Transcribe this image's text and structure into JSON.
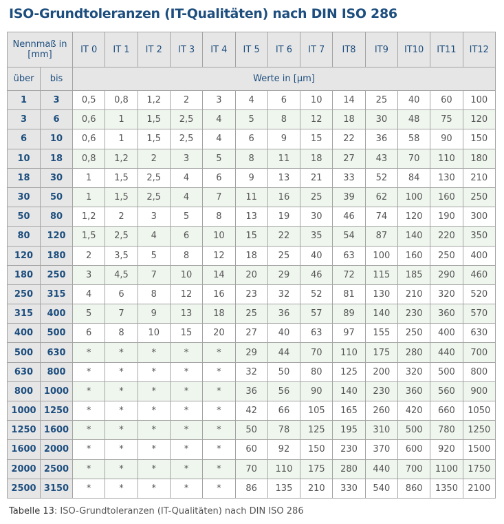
{
  "title": "ISO-Grundtoleranzen (IT-Qualitäten) nach DIN ISO 286",
  "header": {
    "nennmass": "Nennmaß in [mm]",
    "ueber": "über",
    "bis": "bis",
    "werte": "Werte in [µm]",
    "grades": [
      "IT 0",
      "IT 1",
      "IT 2",
      "IT 3",
      "IT 4",
      "IT 5",
      "IT 6",
      "IT 7",
      "IT8",
      "IT9",
      "IT10",
      "IT11",
      "IT12"
    ]
  },
  "rows": [
    {
      "ueber": "1",
      "bis": "3",
      "values": [
        "0,5",
        "0,8",
        "1,2",
        "2",
        "3",
        "4",
        "6",
        "10",
        "14",
        "25",
        "40",
        "60",
        "100"
      ]
    },
    {
      "ueber": "3",
      "bis": "6",
      "values": [
        "0,6",
        "1",
        "1,5",
        "2,5",
        "4",
        "5",
        "8",
        "12",
        "18",
        "30",
        "48",
        "75",
        "120"
      ]
    },
    {
      "ueber": "6",
      "bis": "10",
      "values": [
        "0,6",
        "1",
        "1,5",
        "2,5",
        "4",
        "6",
        "9",
        "15",
        "22",
        "36",
        "58",
        "90",
        "150"
      ]
    },
    {
      "ueber": "10",
      "bis": "18",
      "values": [
        "0,8",
        "1,2",
        "2",
        "3",
        "5",
        "8",
        "11",
        "18",
        "27",
        "43",
        "70",
        "110",
        "180"
      ]
    },
    {
      "ueber": "18",
      "bis": "30",
      "values": [
        "1",
        "1,5",
        "2,5",
        "4",
        "6",
        "9",
        "13",
        "21",
        "33",
        "52",
        "84",
        "130",
        "210"
      ]
    },
    {
      "ueber": "30",
      "bis": "50",
      "values": [
        "1",
        "1,5",
        "2,5",
        "4",
        "7",
        "11",
        "16",
        "25",
        "39",
        "62",
        "100",
        "160",
        "250"
      ]
    },
    {
      "ueber": "50",
      "bis": "80",
      "values": [
        "1,2",
        "2",
        "3",
        "5",
        "8",
        "13",
        "19",
        "30",
        "46",
        "74",
        "120",
        "190",
        "300"
      ]
    },
    {
      "ueber": "80",
      "bis": "120",
      "values": [
        "1,5",
        "2,5",
        "4",
        "6",
        "10",
        "15",
        "22",
        "35",
        "54",
        "87",
        "140",
        "220",
        "350"
      ]
    },
    {
      "ueber": "120",
      "bis": "180",
      "values": [
        "2",
        "3,5",
        "5",
        "8",
        "12",
        "18",
        "25",
        "40",
        "63",
        "100",
        "160",
        "250",
        "400"
      ]
    },
    {
      "ueber": "180",
      "bis": "250",
      "values": [
        "3",
        "4,5",
        "7",
        "10",
        "14",
        "20",
        "29",
        "46",
        "72",
        "115",
        "185",
        "290",
        "460"
      ]
    },
    {
      "ueber": "250",
      "bis": "315",
      "values": [
        "4",
        "6",
        "8",
        "12",
        "16",
        "23",
        "32",
        "52",
        "81",
        "130",
        "210",
        "320",
        "520"
      ]
    },
    {
      "ueber": "315",
      "bis": "400",
      "values": [
        "5",
        "7",
        "9",
        "13",
        "18",
        "25",
        "36",
        "57",
        "89",
        "140",
        "230",
        "360",
        "570"
      ]
    },
    {
      "ueber": "400",
      "bis": "500",
      "values": [
        "6",
        "8",
        "10",
        "15",
        "20",
        "27",
        "40",
        "63",
        "97",
        "155",
        "250",
        "400",
        "630"
      ]
    },
    {
      "ueber": "500",
      "bis": "630",
      "values": [
        "*",
        "*",
        "*",
        "*",
        "*",
        "29",
        "44",
        "70",
        "110",
        "175",
        "280",
        "440",
        "700"
      ]
    },
    {
      "ueber": "630",
      "bis": "800",
      "values": [
        "*",
        "*",
        "*",
        "*",
        "*",
        "32",
        "50",
        "80",
        "125",
        "200",
        "320",
        "500",
        "800"
      ]
    },
    {
      "ueber": "800",
      "bis": "1000",
      "values": [
        "*",
        "*",
        "*",
        "*",
        "*",
        "36",
        "56",
        "90",
        "140",
        "230",
        "360",
        "560",
        "900"
      ]
    },
    {
      "ueber": "1000",
      "bis": "1250",
      "values": [
        "*",
        "*",
        "*",
        "*",
        "*",
        "42",
        "66",
        "105",
        "165",
        "260",
        "420",
        "660",
        "1050"
      ]
    },
    {
      "ueber": "1250",
      "bis": "1600",
      "values": [
        "*",
        "*",
        "*",
        "*",
        "*",
        "50",
        "78",
        "125",
        "195",
        "310",
        "500",
        "780",
        "1250"
      ]
    },
    {
      "ueber": "1600",
      "bis": "2000",
      "values": [
        "*",
        "*",
        "*",
        "*",
        "*",
        "60",
        "92",
        "150",
        "230",
        "370",
        "600",
        "920",
        "1500"
      ]
    },
    {
      "ueber": "2000",
      "bis": "2500",
      "values": [
        "*",
        "*",
        "*",
        "*",
        "*",
        "70",
        "110",
        "175",
        "280",
        "440",
        "700",
        "1100",
        "1750"
      ]
    },
    {
      "ueber": "2500",
      "bis": "3150",
      "values": [
        "*",
        "*",
        "*",
        "*",
        "*",
        "86",
        "135",
        "210",
        "330",
        "540",
        "860",
        "1350",
        "2100"
      ]
    }
  ],
  "caption": {
    "label": "Tabelle 13",
    "text": ": ISO-Grundtoleranzen (IT-Qualitäten) nach DIN ISO 286"
  },
  "colors": {
    "title": "#1d4e7e",
    "header_bg": "#e6e6e6",
    "alt_row": "#eff6ee",
    "border": "#a3a3a3"
  }
}
